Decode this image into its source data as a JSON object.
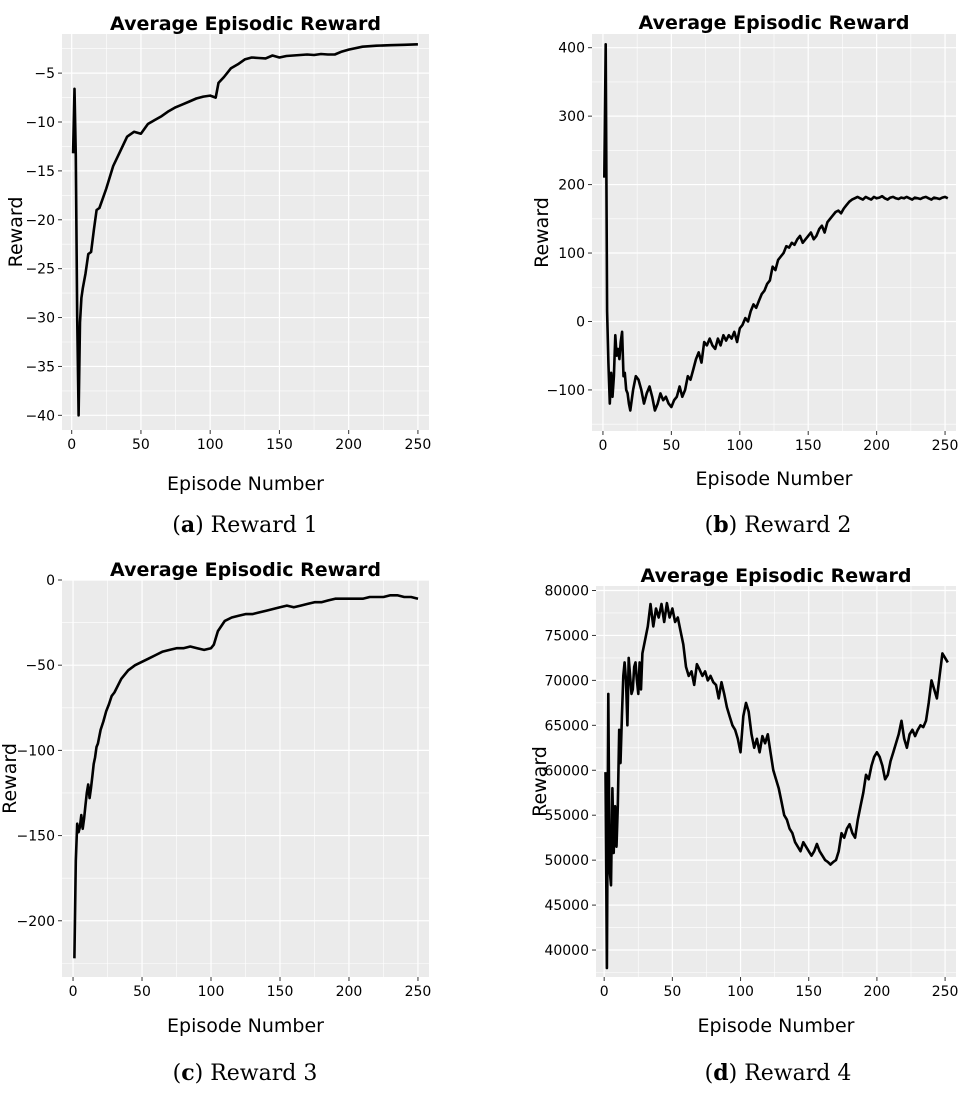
{
  "styles": {
    "panel_bg": "#ebebeb",
    "grid": "#ffffff",
    "line": "#000000"
  },
  "chart_data": [
    {
      "type": "line",
      "caption_letter": "a",
      "caption_text": "Reward 1",
      "title": "Average Episodic Reward",
      "xlabel": "Episode Number",
      "ylabel": "Reward",
      "xlim": [
        -7,
        258
      ],
      "ylim": [
        -41.5,
        -1
      ],
      "xticks": [
        0,
        50,
        100,
        150,
        200,
        250
      ],
      "yticks": [
        -40,
        -35,
        -30,
        -25,
        -20,
        -15,
        -10,
        -5
      ],
      "grid": true,
      "series": [
        {
          "x": [
            1,
            2,
            3,
            4,
            5,
            6,
            7,
            8,
            10,
            12,
            14,
            16,
            18,
            20,
            22,
            25,
            30,
            35,
            40,
            45,
            50,
            55,
            60,
            65,
            70,
            75,
            80,
            85,
            90,
            95,
            100,
            104,
            106,
            110,
            115,
            120,
            125,
            130,
            135,
            140,
            145,
            150,
            155,
            160,
            165,
            170,
            175,
            180,
            185,
            190,
            195,
            200,
            210,
            220,
            230,
            240,
            250
          ],
          "y": [
            -13.2,
            -6.6,
            -13.5,
            -30,
            -40,
            -30.5,
            -28,
            -27,
            -25.5,
            -23.5,
            -23.3,
            -21,
            -19,
            -18.8,
            -18,
            -16.8,
            -14.5,
            -13,
            -11.5,
            -11,
            -11.2,
            -10.2,
            -9.8,
            -9.4,
            -8.9,
            -8.5,
            -8.2,
            -7.9,
            -7.6,
            -7.4,
            -7.3,
            -7.5,
            -6,
            -5.4,
            -4.5,
            -4.1,
            -3.6,
            -3.4,
            -3.45,
            -3.5,
            -3.2,
            -3.4,
            -3.25,
            -3.2,
            -3.15,
            -3.1,
            -3.15,
            -3.05,
            -3.1,
            -3.1,
            -2.8,
            -2.6,
            -2.3,
            -2.2,
            -2.15,
            -2.1,
            -2.05
          ]
        }
      ]
    },
    {
      "type": "line",
      "caption_letter": "b",
      "caption_text": "Reward 2",
      "title": "Average Episodic Reward",
      "xlabel": "Episode Number",
      "ylabel": "Reward",
      "xlim": [
        -8,
        258
      ],
      "ylim": [
        -160,
        420
      ],
      "xticks": [
        0,
        50,
        100,
        150,
        200,
        250
      ],
      "yticks": [
        -100,
        0,
        100,
        200,
        300,
        400
      ],
      "grid": true,
      "series": [
        {
          "x": [
            1,
            2,
            3,
            4,
            5,
            6,
            7,
            8,
            9,
            10,
            11,
            12,
            13,
            14,
            15,
            16,
            17,
            18,
            19,
            20,
            22,
            24,
            26,
            28,
            30,
            32,
            34,
            36,
            38,
            40,
            42,
            44,
            46,
            48,
            50,
            52,
            54,
            56,
            58,
            60,
            62,
            64,
            66,
            68,
            70,
            72,
            74,
            76,
            78,
            80,
            82,
            84,
            86,
            88,
            90,
            92,
            94,
            96,
            98,
            100,
            102,
            104,
            106,
            108,
            110,
            112,
            114,
            116,
            118,
            120,
            122,
            124,
            126,
            128,
            130,
            132,
            134,
            136,
            138,
            140,
            142,
            144,
            146,
            148,
            150,
            152,
            154,
            156,
            158,
            160,
            162,
            164,
            166,
            168,
            170,
            172,
            174,
            176,
            178,
            180,
            182,
            184,
            186,
            188,
            190,
            192,
            194,
            196,
            198,
            200,
            202,
            204,
            206,
            208,
            210,
            212,
            214,
            216,
            218,
            220,
            222,
            224,
            226,
            228,
            230,
            232,
            234,
            236,
            238,
            240,
            242,
            244,
            246,
            248,
            250,
            252
          ],
          "y": [
            210,
            405,
            15,
            -60,
            -120,
            -75,
            -110,
            -80,
            -20,
            -50,
            -40,
            -55,
            -30,
            -15,
            -80,
            -75,
            -100,
            -105,
            -120,
            -130,
            -100,
            -80,
            -85,
            -100,
            -120,
            -105,
            -95,
            -110,
            -130,
            -120,
            -105,
            -115,
            -110,
            -120,
            -125,
            -115,
            -110,
            -95,
            -110,
            -100,
            -80,
            -85,
            -70,
            -55,
            -45,
            -60,
            -30,
            -35,
            -25,
            -35,
            -40,
            -25,
            -35,
            -20,
            -28,
            -20,
            -25,
            -15,
            -30,
            -10,
            -5,
            5,
            0,
            15,
            25,
            20,
            30,
            40,
            45,
            55,
            60,
            80,
            75,
            90,
            95,
            100,
            110,
            108,
            115,
            112,
            120,
            125,
            115,
            120,
            125,
            130,
            120,
            125,
            135,
            140,
            130,
            145,
            150,
            155,
            160,
            162,
            158,
            165,
            170,
            175,
            178,
            180,
            182,
            180,
            178,
            182,
            180,
            178,
            182,
            180,
            181,
            183,
            180,
            178,
            181,
            182,
            180,
            179,
            181,
            180,
            182,
            180,
            178,
            181,
            180,
            179,
            181,
            182,
            180,
            178,
            181,
            180,
            179,
            181,
            182,
            180
          ],
          "__comment": "high-frequency wiggle approximated"
        }
      ]
    },
    {
      "type": "line",
      "caption_letter": "c",
      "caption_text": "Reward 3",
      "title": "Average Episodic Reward",
      "xlabel": "Episode Number",
      "ylabel": "Reward",
      "xlim": [
        -8,
        258
      ],
      "ylim": [
        -233,
        0
      ],
      "xticks": [
        0,
        50,
        100,
        150,
        200,
        250
      ],
      "yticks": [
        0,
        -50,
        -100,
        -150,
        -200
      ],
      "grid": true,
      "series": [
        {
          "x": [
            1,
            2,
            3,
            4,
            5,
            6,
            7,
            8,
            9,
            10,
            11,
            12,
            13,
            14,
            15,
            16,
            17,
            18,
            20,
            22,
            24,
            26,
            28,
            30,
            35,
            40,
            45,
            50,
            55,
            60,
            65,
            70,
            75,
            80,
            85,
            90,
            95,
            100,
            102,
            105,
            110,
            115,
            120,
            125,
            130,
            135,
            140,
            145,
            150,
            155,
            160,
            165,
            170,
            175,
            180,
            185,
            190,
            195,
            200,
            205,
            210,
            215,
            220,
            225,
            230,
            235,
            240,
            245,
            250
          ],
          "y": [
            -222,
            -165,
            -143,
            -148,
            -145,
            -138,
            -146,
            -140,
            -132,
            -125,
            -120,
            -128,
            -122,
            -115,
            -108,
            -104,
            -98,
            -96,
            -88,
            -83,
            -77,
            -73,
            -68,
            -66,
            -58,
            -53,
            -50,
            -48,
            -46,
            -44,
            -42,
            -41,
            -40,
            -40,
            -39,
            -40,
            -41,
            -40,
            -38,
            -30,
            -24,
            -22,
            -21,
            -20,
            -20,
            -19,
            -18,
            -17,
            -16,
            -15,
            -16,
            -15,
            -14,
            -13,
            -13,
            -12,
            -11,
            -11,
            -11,
            -11,
            -11,
            -10,
            -10,
            -10,
            -9,
            -9,
            -10,
            -10,
            -11
          ]
        }
      ]
    },
    {
      "type": "line",
      "caption_letter": "d",
      "caption_text": "Reward 4",
      "title": "Average Episodic Reward",
      "xlabel": "Episode Number",
      "ylabel": "Reward",
      "xlim": [
        -6,
        258
      ],
      "ylim": [
        37000,
        80500
      ],
      "xticks": [
        0,
        50,
        100,
        150,
        200,
        250
      ],
      "yticks": [
        40000,
        45000,
        50000,
        55000,
        60000,
        65000,
        70000,
        75000,
        80000
      ],
      "grid": true,
      "series": [
        {
          "x": [
            1,
            2,
            3,
            4,
            5,
            6,
            7,
            8,
            9,
            10,
            11,
            12,
            13,
            14,
            15,
            16,
            17,
            18,
            19,
            20,
            21,
            22,
            23,
            24,
            25,
            26,
            27,
            28,
            30,
            32,
            34,
            36,
            38,
            40,
            42,
            44,
            46,
            48,
            50,
            52,
            54,
            56,
            58,
            60,
            62,
            64,
            66,
            68,
            70,
            72,
            74,
            76,
            78,
            80,
            82,
            84,
            86,
            88,
            90,
            92,
            94,
            96,
            98,
            100,
            102,
            104,
            106,
            108,
            110,
            112,
            114,
            116,
            118,
            120,
            122,
            124,
            126,
            128,
            130,
            132,
            134,
            136,
            138,
            140,
            142,
            144,
            146,
            148,
            150,
            152,
            154,
            156,
            158,
            160,
            162,
            164,
            166,
            168,
            170,
            172,
            174,
            176,
            178,
            180,
            182,
            184,
            186,
            188,
            190,
            192,
            194,
            196,
            198,
            200,
            202,
            204,
            206,
            208,
            210,
            212,
            214,
            216,
            218,
            220,
            222,
            224,
            226,
            228,
            230,
            232,
            234,
            236,
            238,
            240,
            242,
            244,
            246,
            248,
            250,
            252
          ],
          "y": [
            59800,
            38000,
            68500,
            49000,
            47200,
            58000,
            50800,
            56000,
            51500,
            56000,
            64500,
            60800,
            66000,
            70500,
            72000,
            70000,
            65000,
            72500,
            70500,
            68500,
            69000,
            71500,
            72000,
            70000,
            68500,
            72000,
            69000,
            73000,
            74500,
            76000,
            78500,
            76000,
            78000,
            77000,
            78500,
            76500,
            78600,
            77000,
            78000,
            76500,
            77000,
            75500,
            74000,
            71500,
            70500,
            71000,
            69500,
            71800,
            71200,
            70500,
            71000,
            70000,
            70500,
            69800,
            69500,
            68000,
            69800,
            68500,
            67000,
            66000,
            65000,
            64500,
            63500,
            62000,
            66000,
            67500,
            66500,
            64000,
            62500,
            63500,
            62000,
            63800,
            63000,
            64000,
            62000,
            60000,
            59000,
            58000,
            56500,
            55000,
            54500,
            53500,
            53000,
            52000,
            51500,
            51000,
            52000,
            51500,
            51000,
            50500,
            51000,
            51800,
            51000,
            50500,
            50000,
            49800,
            49500,
            49800,
            50000,
            51000,
            53000,
            52500,
            53500,
            54000,
            53000,
            52500,
            54500,
            56000,
            57500,
            59500,
            59000,
            60500,
            61500,
            62000,
            61500,
            60500,
            59000,
            59500,
            61000,
            62000,
            63000,
            64000,
            65500,
            63500,
            62500,
            64000,
            64500,
            63800,
            64500,
            65000,
            64800,
            65500,
            67500,
            70000,
            69000,
            68000,
            70500,
            73000,
            72500,
            72000
          ]
        }
      ]
    }
  ]
}
